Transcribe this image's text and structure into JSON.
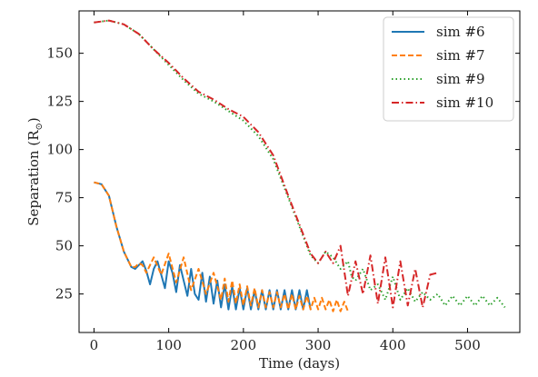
{
  "chart_data": {
    "type": "line",
    "xlabel": "Time (days)",
    "ylabel": "Separation (R",
    "ylabel_sub": "⊙",
    "ylabel_close": ")",
    "xlim": [
      -20,
      570
    ],
    "ylim": [
      5,
      172
    ],
    "xticks": [
      0,
      100,
      200,
      300,
      400,
      500
    ],
    "yticks": [
      25,
      50,
      75,
      100,
      125,
      150
    ],
    "legend_position": "top-right",
    "grid": false,
    "series": [
      {
        "name": "sim #6",
        "color": "#1f77b4",
        "dash": "solid",
        "x": [
          0,
          10,
          20,
          30,
          40,
          50,
          55,
          60,
          65,
          70,
          75,
          80,
          85,
          90,
          95,
          100,
          105,
          110,
          115,
          120,
          125,
          130,
          135,
          140,
          145,
          150,
          155,
          160,
          165,
          170,
          175,
          180,
          185,
          190,
          195,
          200,
          205,
          210,
          215,
          220,
          225,
          230,
          235,
          240,
          245,
          250,
          255,
          260,
          265,
          270,
          275,
          280,
          285,
          290
        ],
        "y": [
          83,
          82,
          76,
          60,
          47,
          39,
          38,
          40,
          42,
          37,
          30,
          38,
          42,
          35,
          28,
          42,
          36,
          26,
          40,
          32,
          24,
          38,
          25,
          22,
          36,
          21,
          34,
          20,
          32,
          18,
          30,
          17,
          29,
          17,
          28,
          17,
          28,
          17,
          27,
          17,
          27,
          17,
          27,
          17,
          27,
          17,
          27,
          17,
          27,
          17,
          27,
          17,
          27,
          17
        ]
      },
      {
        "name": "sim #7",
        "color": "#ff7f0e",
        "dash": "dashed",
        "x": [
          0,
          10,
          20,
          30,
          40,
          50,
          55,
          60,
          65,
          70,
          80,
          90,
          100,
          110,
          120,
          130,
          140,
          150,
          160,
          170,
          175,
          180,
          185,
          190,
          195,
          200,
          205,
          210,
          215,
          220,
          225,
          230,
          235,
          240,
          245,
          250,
          255,
          260,
          265,
          270,
          275,
          280,
          285,
          290,
          295,
          300,
          305,
          310,
          315,
          320,
          325,
          330,
          335,
          340
        ],
        "y": [
          83,
          82,
          76,
          60,
          47,
          39,
          39,
          41,
          40,
          36,
          44,
          35,
          46,
          31,
          44,
          27,
          38,
          25,
          36,
          22,
          33,
          21,
          32,
          20,
          30,
          19,
          29,
          19,
          28,
          18,
          27,
          18,
          26,
          18,
          26,
          18,
          25,
          17,
          25,
          17,
          24,
          17,
          24,
          17,
          23,
          17,
          23,
          17,
          22,
          16,
          22,
          16,
          21,
          16
        ]
      },
      {
        "name": "sim #9",
        "color": "#2ca02c",
        "dash": "dotted",
        "x": [
          0,
          20,
          40,
          60,
          80,
          100,
          120,
          140,
          160,
          180,
          200,
          220,
          240,
          260,
          280,
          290,
          300,
          310,
          320,
          330,
          340,
          345,
          350,
          360,
          370,
          380,
          390,
          400,
          410,
          420,
          430,
          440,
          450,
          460,
          470,
          480,
          490,
          500,
          510,
          520,
          530,
          540,
          550
        ],
        "y": [
          166,
          167,
          165,
          160,
          152,
          144,
          136,
          129,
          125,
          120,
          115,
          107,
          95,
          75,
          55,
          45,
          41,
          47,
          44,
          38,
          42,
          34,
          32,
          38,
          27,
          30,
          22,
          34,
          22,
          28,
          21,
          26,
          22,
          25,
          19,
          24,
          19,
          24,
          19,
          24,
          19,
          23,
          18
        ]
      },
      {
        "name": "sim #10",
        "color": "#d62728",
        "dash": "dashdot",
        "x": [
          0,
          20,
          40,
          60,
          80,
          100,
          120,
          140,
          160,
          180,
          200,
          220,
          240,
          260,
          280,
          290,
          300,
          310,
          320,
          330,
          340,
          350,
          360,
          370,
          380,
          390,
          400,
          410,
          420,
          430,
          440,
          450,
          460
        ],
        "y": [
          166,
          167,
          165,
          160,
          152,
          145,
          137,
          130,
          126,
          121,
          117,
          109,
          97,
          76,
          56,
          46,
          41,
          47,
          41,
          50,
          24,
          42,
          25,
          45,
          20,
          44,
          18,
          42,
          19,
          38,
          18,
          35,
          36
        ]
      }
    ]
  }
}
